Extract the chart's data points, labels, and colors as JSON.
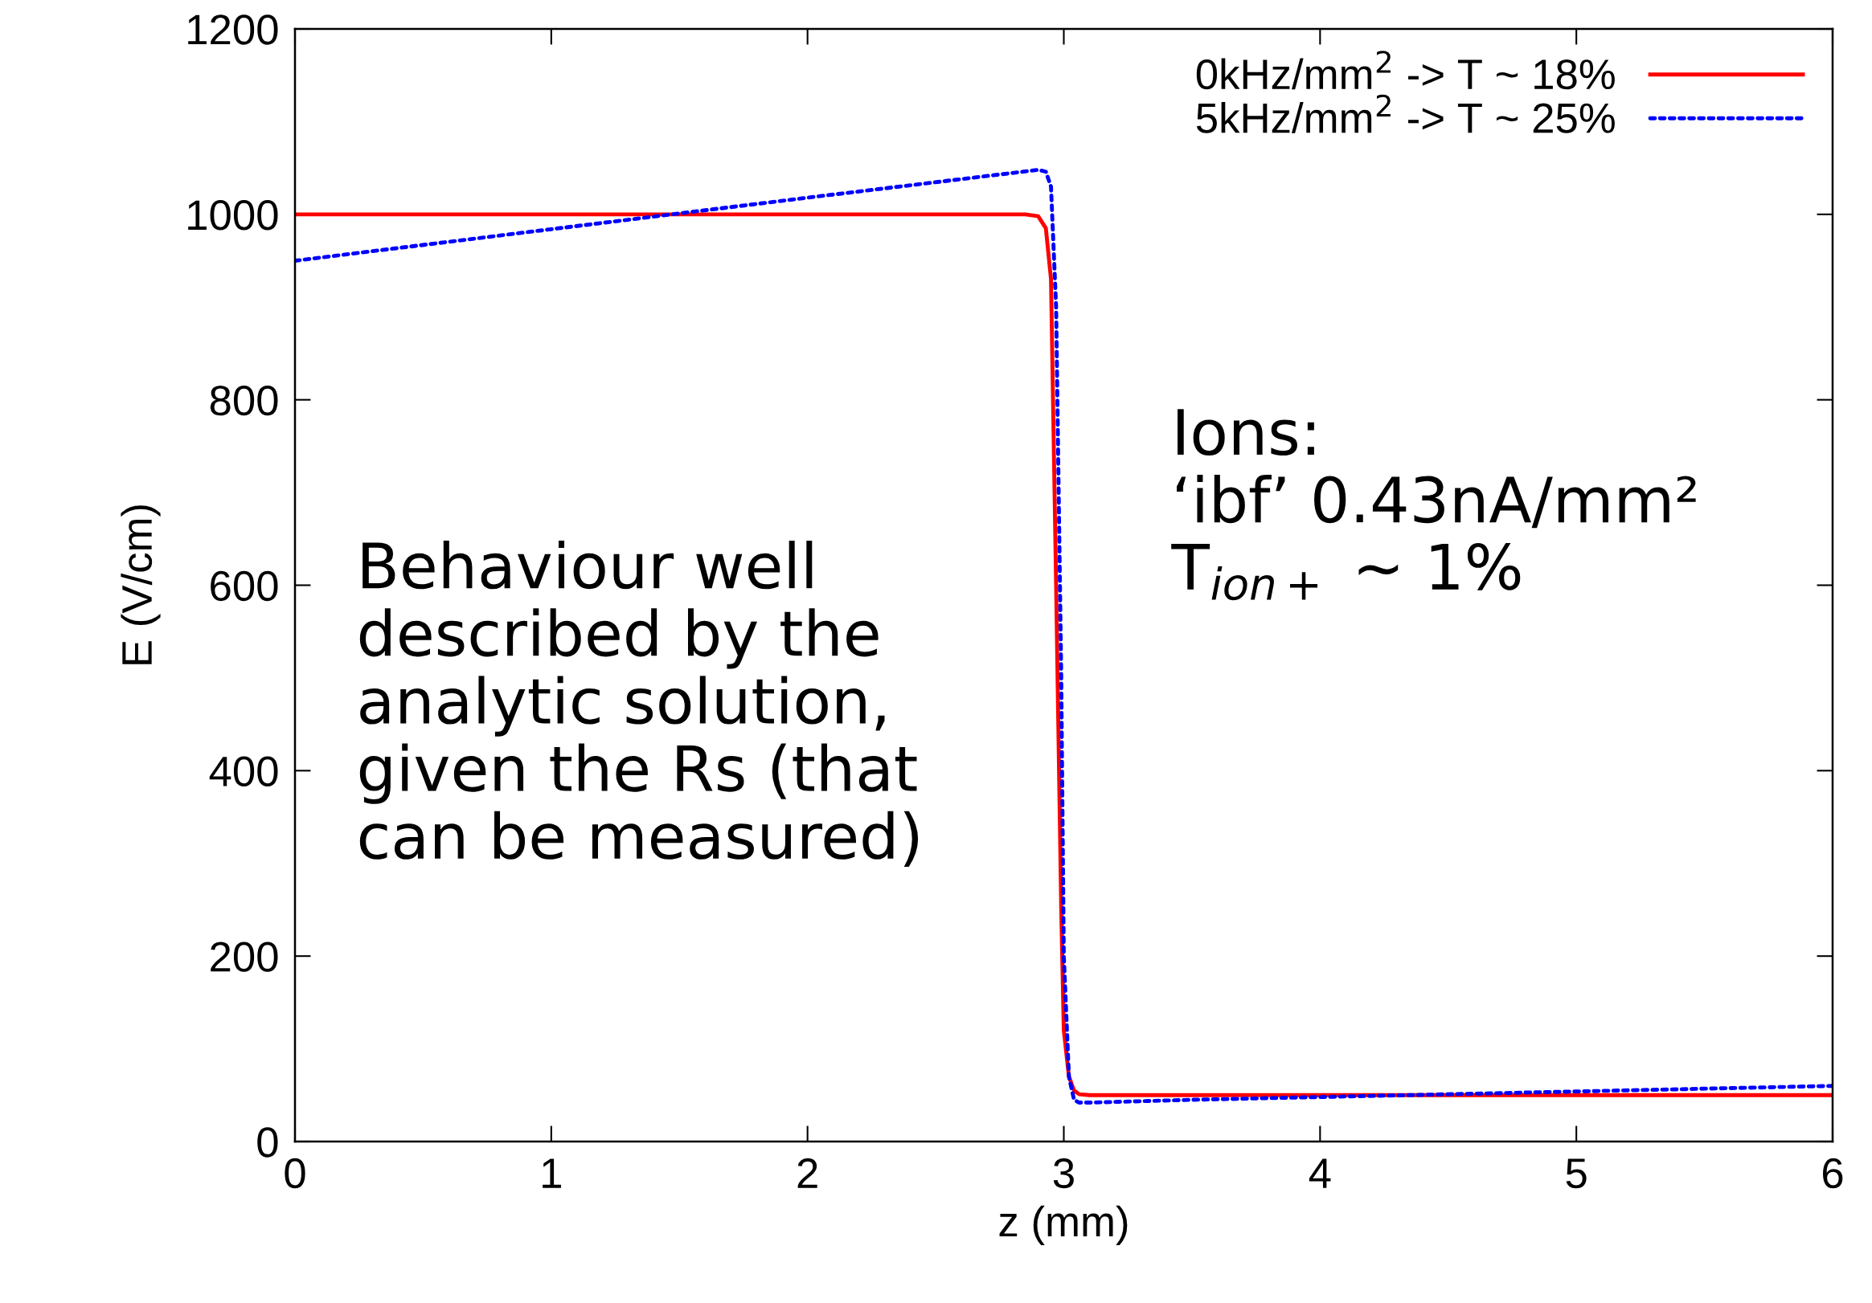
{
  "chart_data": {
    "type": "line",
    "xlabel": "z (mm)",
    "ylabel": "E (V/cm)",
    "xlim": [
      0,
      6
    ],
    "ylim": [
      0,
      1200
    ],
    "xticks": [
      0,
      1,
      2,
      3,
      4,
      5,
      6
    ],
    "yticks": [
      0,
      200,
      400,
      600,
      800,
      1000,
      1200
    ],
    "grid": false,
    "legend": "top right",
    "marker": "none",
    "series": [
      {
        "name": "0kHz/mm$^{2}$ -> T ~ 18%",
        "color": "#ff0000",
        "line_style": "solid",
        "x": [
          0,
          1,
          2,
          2.85,
          2.9,
          2.93,
          2.95,
          2.97,
          2.99,
          3.0,
          3.02,
          3.04,
          3.06,
          3.1,
          4,
          5,
          6
        ],
        "values": [
          1000,
          1000,
          1000,
          1000,
          998,
          985,
          930,
          600,
          250,
          120,
          70,
          55,
          51,
          50,
          50,
          50,
          50
        ]
      },
      {
        "name": "5kHz/mm$^{2}$ -> T ~ 25%",
        "color": "#0000ff",
        "line_style": "dotted",
        "x": [
          0,
          1,
          2,
          2.9,
          2.93,
          2.95,
          2.97,
          2.99,
          3.0,
          3.02,
          3.04,
          3.06,
          3.1,
          3.5,
          4,
          5,
          6
        ],
        "values": [
          950,
          984,
          1018,
          1048,
          1046,
          1030,
          900,
          500,
          200,
          70,
          45,
          42,
          42,
          45,
          48,
          54,
          60
        ]
      }
    ],
    "annotations": [
      {
        "text": "Behaviour well\ndescribed by the\nanalytic solution,\ngiven the Rs (that\ncan be measured)"
      },
      {
        "text": "Ions:\n‘ibf’ 0.43nA/mm²\nT$_{ion+}$ ~ 1%"
      }
    ]
  }
}
